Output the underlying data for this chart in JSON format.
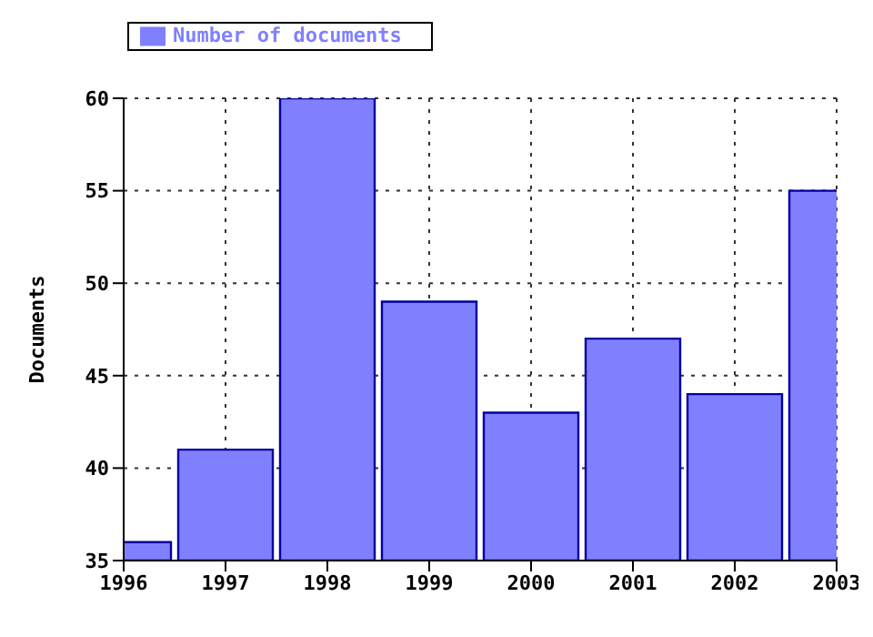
{
  "chart_data": {
    "type": "bar",
    "ylabel": "Documents",
    "x": [
      1996,
      1997,
      1998,
      1999,
      2000,
      2001,
      2002,
      2003
    ],
    "series": [
      {
        "name": "Number of documents",
        "color": "#8080ff",
        "values": [
          36,
          41,
          60,
          49,
          43,
          47,
          44,
          55
        ]
      }
    ],
    "xlim": [
      1996,
      2003
    ],
    "xticks": [
      1996,
      1997,
      1998,
      1999,
      2000,
      2001,
      2002,
      2003
    ],
    "ylim": [
      35,
      60
    ],
    "yticks": [
      35,
      40,
      45,
      50,
      55,
      60
    ],
    "grid": true,
    "legend": "top left"
  }
}
